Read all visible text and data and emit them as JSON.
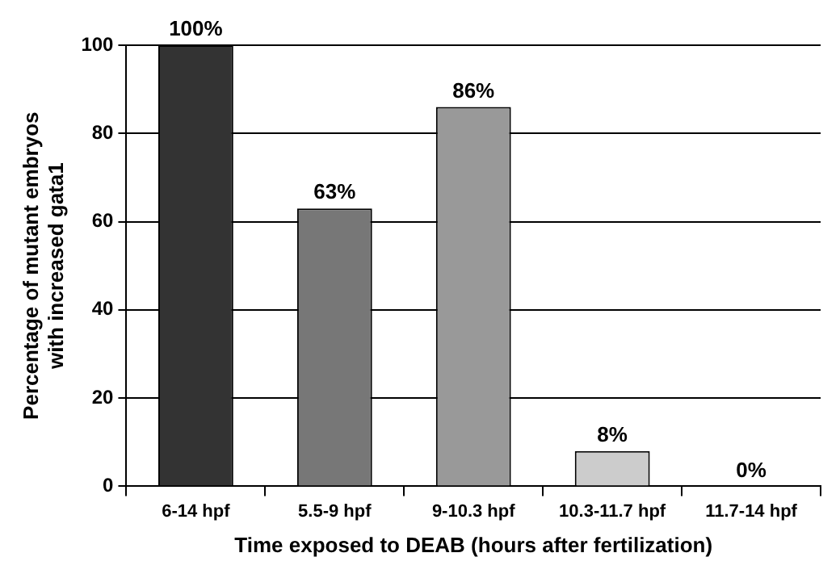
{
  "chart_data": {
    "type": "bar",
    "xlabel": "Time exposed to DEAB (hours after fertilization)",
    "ylabel": "Percentage of mutant embryos with increased gata1",
    "categories": [
      "6-14 hpf",
      "5.5-9 hpf",
      "9-10.3 hpf",
      "10.3-11.7 hpf",
      "11.7-14 hpf"
    ],
    "values": [
      100,
      63,
      86,
      8,
      0
    ],
    "colors": [
      "#333333",
      "#777777",
      "#999999",
      "#cccccc",
      "#e0e0e0"
    ],
    "value_labels": [
      "100%",
      "63%",
      "86%",
      "8%",
      "0%"
    ],
    "ylim": [
      0,
      100
    ],
    "yticks": [
      0,
      20,
      40,
      60,
      80,
      100
    ],
    "grid": "y"
  }
}
